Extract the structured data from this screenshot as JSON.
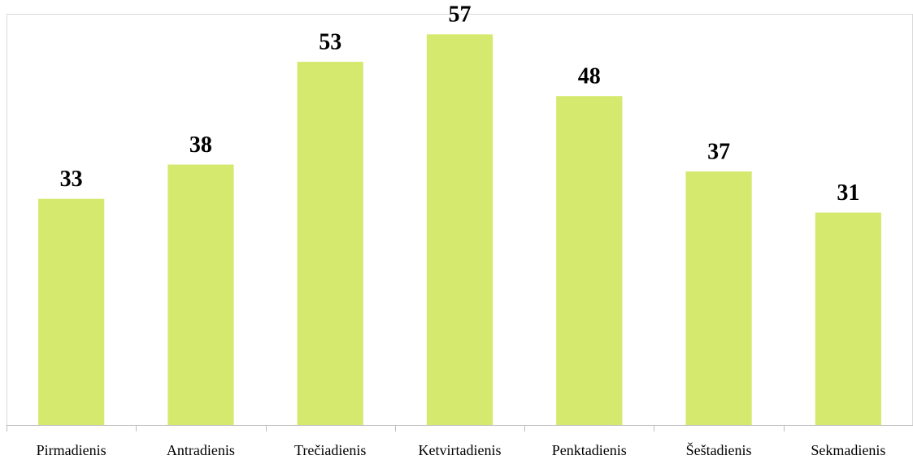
{
  "chart_data": {
    "type": "bar",
    "categories": [
      "Pirmadienis",
      "Antradienis",
      "Trečiadienis",
      "Ketvirtadienis",
      "Penktadienis",
      "Šeštadienis",
      "Sekmadienis"
    ],
    "values": [
      33,
      38,
      53,
      57,
      48,
      37,
      31
    ],
    "color": "#d5e96f",
    "ylim": [
      0,
      60
    ]
  }
}
